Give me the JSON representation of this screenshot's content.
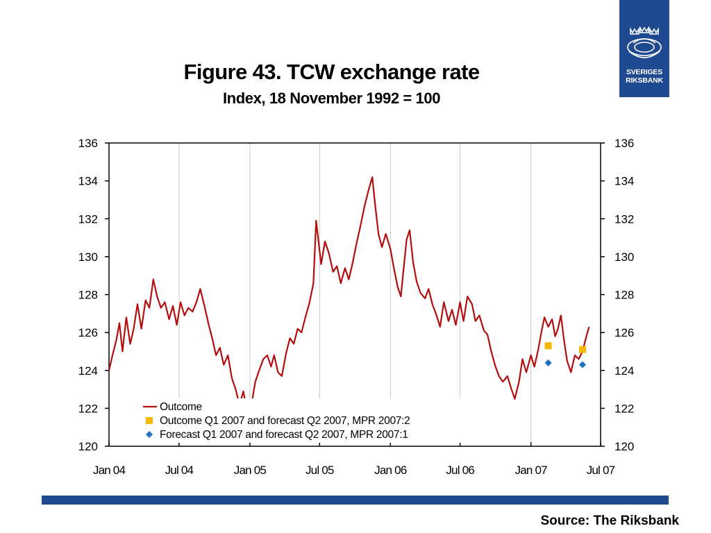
{
  "logo": {
    "line1": "SVERIGES",
    "line2": "RIKSBANK",
    "color": "#1f4a8f"
  },
  "title": "Figure 43. TCW exchange rate",
  "subtitle": "Index, 18 November 1992 = 100",
  "source": "Source: The Riksbank",
  "chart_data": {
    "type": "line",
    "title": "Figure 43. TCW exchange rate",
    "subtitle": "Index, 18 November 1992 = 100",
    "xlabel": "",
    "ylabel": "",
    "xlim": [
      "2004-01-01",
      "2007-07-01"
    ],
    "ylim": [
      120,
      136
    ],
    "x_ticks": [
      {
        "date": "2004-01-01",
        "label": "Jan 04"
      },
      {
        "date": "2004-07-01",
        "label": "Jul 04"
      },
      {
        "date": "2005-01-01",
        "label": "Jan 05"
      },
      {
        "date": "2005-07-01",
        "label": "Jul 05"
      },
      {
        "date": "2006-01-01",
        "label": "Jan 06"
      },
      {
        "date": "2006-07-01",
        "label": "Jul 06"
      },
      {
        "date": "2007-01-01",
        "label": "Jan 07"
      },
      {
        "date": "2007-07-01",
        "label": "Jul 07"
      }
    ],
    "y_ticks": [
      120,
      122,
      124,
      126,
      128,
      130,
      132,
      134,
      136
    ],
    "grid": "vertical",
    "y_axis_duplicated_right": true,
    "legend_position": "bottom-center",
    "series": [
      {
        "name": "Outcome",
        "kind": "line",
        "color": "#b30d0d",
        "points": [
          [
            "2004-01-01",
            124.0
          ],
          [
            "2004-01-10",
            124.8
          ],
          [
            "2004-01-20",
            125.6
          ],
          [
            "2004-01-28",
            126.5
          ],
          [
            "2004-02-05",
            125.0
          ],
          [
            "2004-02-15",
            126.8
          ],
          [
            "2004-02-25",
            125.4
          ],
          [
            "2004-03-05",
            126.2
          ],
          [
            "2004-03-15",
            127.5
          ],
          [
            "2004-03-25",
            126.2
          ],
          [
            "2004-04-05",
            127.7
          ],
          [
            "2004-04-15",
            127.3
          ],
          [
            "2004-04-25",
            128.8
          ],
          [
            "2004-05-05",
            127.9
          ],
          [
            "2004-05-15",
            127.3
          ],
          [
            "2004-05-25",
            127.6
          ],
          [
            "2004-06-05",
            126.7
          ],
          [
            "2004-06-15",
            127.4
          ],
          [
            "2004-06-25",
            126.4
          ],
          [
            "2004-07-05",
            127.6
          ],
          [
            "2004-07-15",
            126.9
          ],
          [
            "2004-07-25",
            127.3
          ],
          [
            "2004-08-05",
            127.1
          ],
          [
            "2004-08-15",
            127.6
          ],
          [
            "2004-08-25",
            128.3
          ],
          [
            "2004-09-05",
            127.4
          ],
          [
            "2004-09-15",
            126.5
          ],
          [
            "2004-09-25",
            125.7
          ],
          [
            "2004-10-05",
            124.8
          ],
          [
            "2004-10-15",
            125.2
          ],
          [
            "2004-10-25",
            124.3
          ],
          [
            "2004-11-05",
            124.8
          ],
          [
            "2004-11-15",
            123.6
          ],
          [
            "2004-11-25",
            123.0
          ],
          [
            "2004-12-05",
            122.2
          ],
          [
            "2004-12-15",
            122.9
          ],
          [
            "2004-12-25",
            121.8
          ],
          [
            "2005-01-05",
            122.2
          ],
          [
            "2005-01-15",
            123.4
          ],
          [
            "2005-01-25",
            124.0
          ],
          [
            "2005-02-05",
            124.6
          ],
          [
            "2005-02-15",
            124.8
          ],
          [
            "2005-02-25",
            124.2
          ],
          [
            "2005-03-05",
            124.8
          ],
          [
            "2005-03-15",
            123.9
          ],
          [
            "2005-03-25",
            123.7
          ],
          [
            "2005-04-05",
            124.9
          ],
          [
            "2005-04-15",
            125.7
          ],
          [
            "2005-04-25",
            125.4
          ],
          [
            "2005-05-05",
            126.2
          ],
          [
            "2005-05-15",
            126.0
          ],
          [
            "2005-05-25",
            126.8
          ],
          [
            "2005-06-05",
            127.6
          ],
          [
            "2005-06-15",
            128.6
          ],
          [
            "2005-06-22",
            131.9
          ],
          [
            "2005-06-30",
            130.5
          ],
          [
            "2005-07-05",
            129.6
          ],
          [
            "2005-07-15",
            130.8
          ],
          [
            "2005-07-25",
            130.2
          ],
          [
            "2005-08-05",
            129.2
          ],
          [
            "2005-08-15",
            129.5
          ],
          [
            "2005-08-25",
            128.6
          ],
          [
            "2005-09-05",
            129.4
          ],
          [
            "2005-09-15",
            128.8
          ],
          [
            "2005-09-25",
            129.7
          ],
          [
            "2005-10-05",
            130.7
          ],
          [
            "2005-10-15",
            131.6
          ],
          [
            "2005-10-25",
            132.6
          ],
          [
            "2005-11-05",
            133.5
          ],
          [
            "2005-11-15",
            134.2
          ],
          [
            "2005-11-22",
            132.8
          ],
          [
            "2005-12-01",
            131.2
          ],
          [
            "2005-12-10",
            130.5
          ],
          [
            "2005-12-20",
            131.2
          ],
          [
            "2006-01-01",
            130.4
          ],
          [
            "2006-01-10",
            129.4
          ],
          [
            "2006-01-20",
            128.4
          ],
          [
            "2006-01-28",
            127.9
          ],
          [
            "2006-02-05",
            129.5
          ],
          [
            "2006-02-12",
            130.9
          ],
          [
            "2006-02-20",
            131.4
          ],
          [
            "2006-03-01",
            129.7
          ],
          [
            "2006-03-10",
            128.7
          ],
          [
            "2006-03-20",
            128.1
          ],
          [
            "2006-04-01",
            127.8
          ],
          [
            "2006-04-10",
            128.3
          ],
          [
            "2006-04-20",
            127.5
          ],
          [
            "2006-05-01",
            126.9
          ],
          [
            "2006-05-10",
            126.3
          ],
          [
            "2006-05-20",
            127.6
          ],
          [
            "2006-06-01",
            126.6
          ],
          [
            "2006-06-10",
            127.2
          ],
          [
            "2006-06-20",
            126.4
          ],
          [
            "2006-07-01",
            127.6
          ],
          [
            "2006-07-10",
            126.6
          ],
          [
            "2006-07-20",
            127.9
          ],
          [
            "2006-08-01",
            127.5
          ],
          [
            "2006-08-10",
            126.6
          ],
          [
            "2006-08-20",
            126.9
          ],
          [
            "2006-09-01",
            126.1
          ],
          [
            "2006-09-10",
            125.9
          ],
          [
            "2006-09-20",
            125.0
          ],
          [
            "2006-10-01",
            124.2
          ],
          [
            "2006-10-10",
            123.7
          ],
          [
            "2006-10-20",
            123.4
          ],
          [
            "2006-11-01",
            123.7
          ],
          [
            "2006-11-10",
            123.1
          ],
          [
            "2006-11-20",
            122.5
          ],
          [
            "2006-12-01",
            123.4
          ],
          [
            "2006-12-10",
            124.6
          ],
          [
            "2006-12-20",
            123.9
          ],
          [
            "2007-01-01",
            124.8
          ],
          [
            "2007-01-10",
            124.2
          ],
          [
            "2007-01-20",
            125.1
          ],
          [
            "2007-01-28",
            126.0
          ],
          [
            "2007-02-05",
            126.8
          ],
          [
            "2007-02-15",
            126.3
          ],
          [
            "2007-02-25",
            126.7
          ],
          [
            "2007-03-05",
            125.8
          ],
          [
            "2007-03-12",
            126.2
          ],
          [
            "2007-03-20",
            126.9
          ],
          [
            "2007-03-28",
            125.6
          ],
          [
            "2007-04-05",
            124.5
          ],
          [
            "2007-04-15",
            123.9
          ],
          [
            "2007-04-25",
            124.8
          ],
          [
            "2007-05-05",
            124.6
          ],
          [
            "2007-05-15",
            125.0
          ],
          [
            "2007-05-25",
            125.8
          ],
          [
            "2007-06-01",
            126.3
          ]
        ]
      },
      {
        "name": "Outcome Q1 2007 and forecast Q2 2007, MPR 2007:2",
        "kind": "marker",
        "marker": "square",
        "color": "#f5b800",
        "points": [
          [
            "2007-02-15",
            125.3
          ],
          [
            "2007-05-15",
            125.1
          ]
        ]
      },
      {
        "name": "Forecast Q1 2007 and forecast Q2 2007, MPR 2007:1",
        "kind": "marker",
        "marker": "diamond",
        "color": "#1f6fc0",
        "points": [
          [
            "2007-02-15",
            124.4
          ],
          [
            "2007-05-15",
            124.3
          ]
        ]
      }
    ]
  }
}
